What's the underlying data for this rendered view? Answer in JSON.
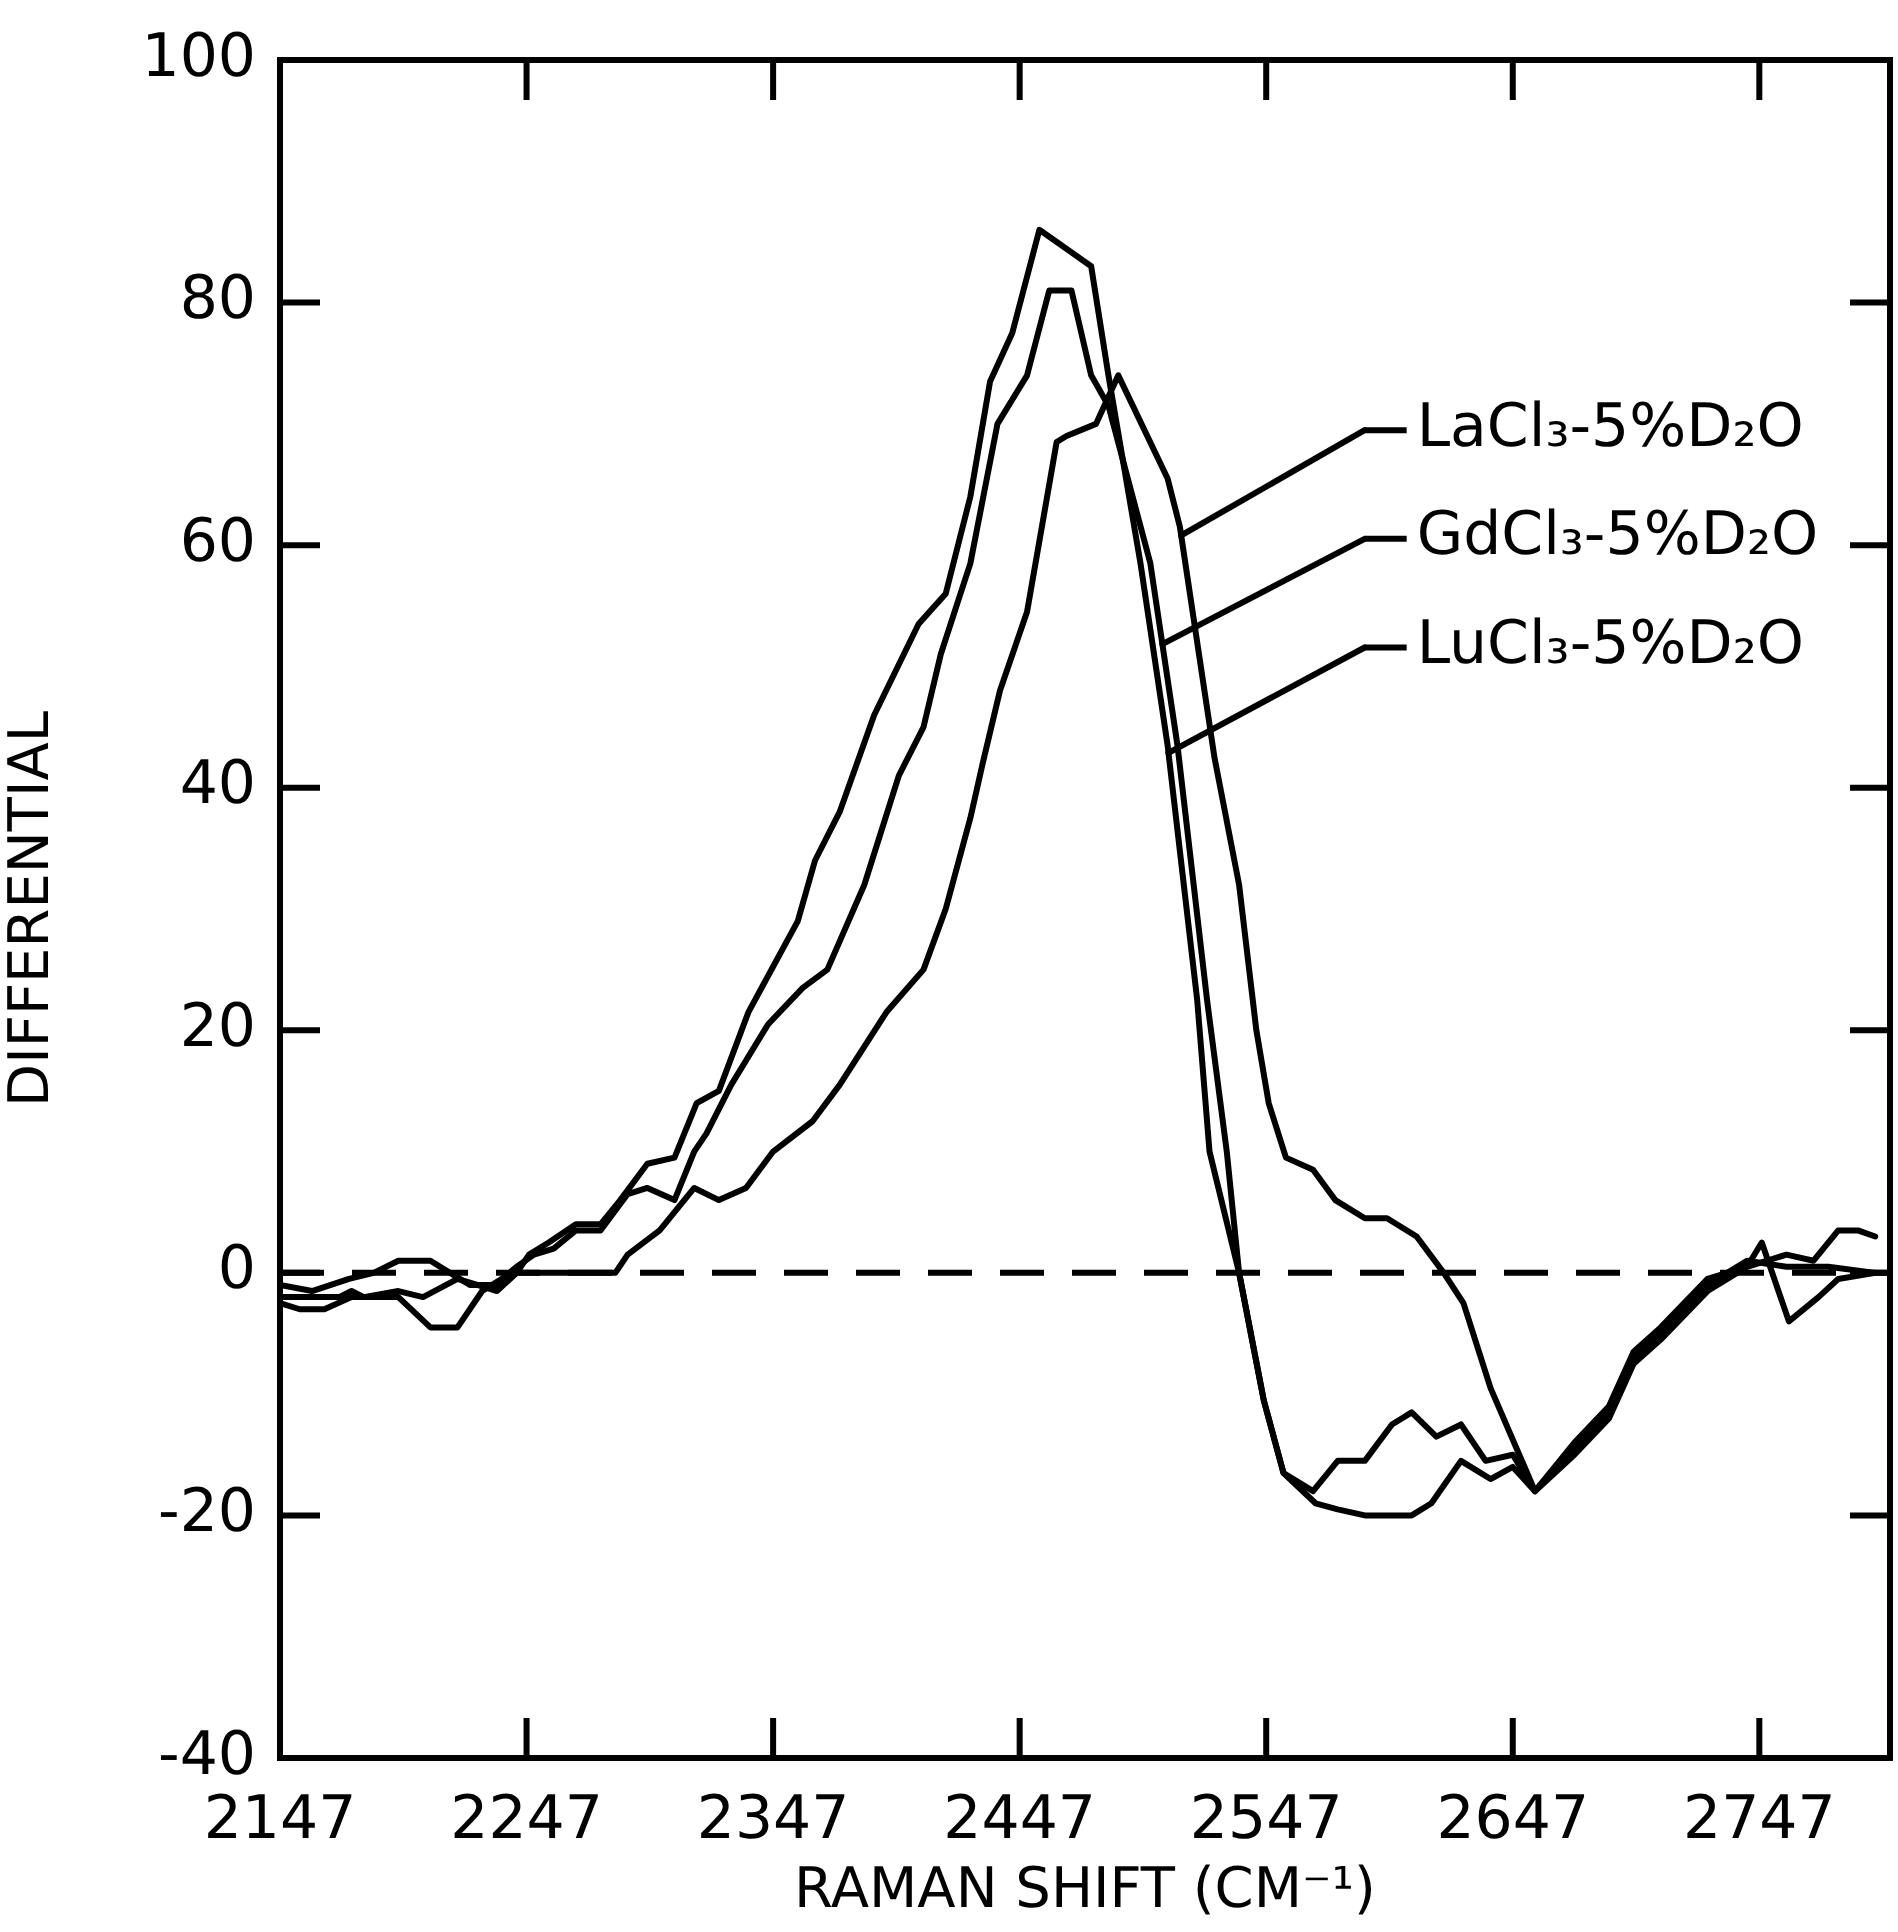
{
  "chart_data": {
    "type": "line",
    "xlabel": "RAMAN SHIFT (CM⁻¹)",
    "ylabel": "DIFFERENTIAL",
    "xlim": [
      2147,
      2800
    ],
    "xticks": [
      2147,
      2247,
      2347,
      2447,
      2547,
      2647,
      2747
    ],
    "ylim": [
      -40,
      100
    ],
    "yticks": [
      -40,
      -20,
      0,
      20,
      40,
      60,
      80,
      100
    ],
    "marker": "none",
    "line_style": "solid",
    "legend": "top right",
    "ref_lines": [
      {
        "axis": "y",
        "value": 0,
        "line_style": "dashed",
        "color": "#000000"
      }
    ],
    "series": [
      {
        "name": "LaCl₃-5%D₂O",
        "color": "#000000",
        "x": [
          2147,
          2160,
          2175,
          2185,
          2195,
          2208,
          2224,
          2235,
          2243,
          2283,
          2288,
          2301,
          2315,
          2325,
          2336,
          2347,
          2363,
          2374,
          2393,
          2408,
          2417,
          2427,
          2432,
          2439,
          2450,
          2462,
          2466,
          2478,
          2487,
          2507,
          2512,
          2526,
          2536,
          2543,
          2548,
          2555,
          2566,
          2575,
          2587,
          2596,
          2608,
          2619,
          2627,
          2638,
          2656,
          2672,
          2686,
          2696,
          2707,
          2726,
          2734,
          2742,
          2758,
          2775,
          2794
        ],
        "values": [
          -1,
          -1.5,
          -0.5,
          0,
          1,
          1,
          -1,
          -1,
          0,
          0,
          1.5,
          3.5,
          7,
          6,
          7,
          10,
          12.5,
          15.5,
          21.5,
          25,
          30,
          37.5,
          42,
          48,
          54.5,
          68.5,
          69,
          70,
          74,
          65.5,
          61.5,
          42.5,
          32,
          20,
          14,
          9.5,
          8.5,
          6,
          4.5,
          4.5,
          3,
          0,
          -2.5,
          -9.5,
          -18,
          -14,
          -11,
          -6.5,
          -4.5,
          -0.5,
          0,
          1,
          0.5,
          0.5,
          0
        ]
      },
      {
        "name": "GdCl₃-5%D₂O",
        "color": "#000000",
        "x": [
          2147,
          2155,
          2165,
          2176,
          2184,
          2195,
          2208,
          2219,
          2229,
          2237,
          2243,
          2250,
          2258,
          2267,
          2277,
          2288,
          2296,
          2307,
          2315,
          2320,
          2330,
          2345,
          2359,
          2369,
          2384,
          2398,
          2408,
          2415,
          2427,
          2438,
          2450,
          2459,
          2468,
          2476,
          2483,
          2500,
          2511,
          2523,
          2531,
          2536,
          2546,
          2554,
          2567,
          2576,
          2587,
          2606,
          2614,
          2626,
          2638,
          2647,
          2656,
          2672,
          2686,
          2696,
          2707,
          2726,
          2734,
          2742,
          2758,
          2769,
          2779,
          2787,
          2794
        ],
        "values": [
          -2.5,
          -3,
          -3,
          -2,
          -2,
          -2,
          -4.5,
          -4.5,
          -1.5,
          -0.5,
          0.5,
          1.5,
          2,
          3.5,
          3.5,
          6.5,
          7,
          6,
          10,
          11.5,
          15.5,
          20.5,
          23.5,
          25,
          32,
          41,
          45,
          51,
          58.5,
          70,
          74,
          81,
          81,
          74,
          71.5,
          58.5,
          43.5,
          22.5,
          10,
          0,
          -10.5,
          -16.5,
          -19,
          -19.5,
          -20,
          -20,
          -19,
          -15.5,
          -17,
          -16,
          -18,
          -15,
          -12,
          -7.5,
          -5.5,
          -1.5,
          -0.5,
          0.5,
          1.5,
          1,
          3.5,
          3.5,
          3
        ]
      },
      {
        "name": "LuCl₃-5%D₂O",
        "color": "#000000",
        "x": [
          2147,
          2160,
          2171,
          2176,
          2181,
          2195,
          2205,
          2219,
          2227,
          2235,
          2243,
          2248,
          2256,
          2267,
          2277,
          2285,
          2296,
          2307,
          2316,
          2325,
          2337,
          2357,
          2364,
          2374,
          2388,
          2406,
          2417,
          2427,
          2435,
          2444,
          2455,
          2476,
          2483,
          2496,
          2507,
          2519,
          2524,
          2536,
          2546,
          2554,
          2566,
          2576,
          2587,
          2598,
          2606,
          2616,
          2626,
          2636,
          2647,
          2656,
          2672,
          2686,
          2696,
          2707,
          2726,
          2734,
          2742,
          2748,
          2759,
          2771,
          2779,
          2794
        ],
        "values": [
          -2,
          -2,
          -2,
          -1.5,
          -2,
          -1.5,
          -2,
          -0.5,
          -1,
          -1.5,
          0,
          1.5,
          2.5,
          4,
          4,
          6,
          9,
          9.5,
          14,
          15,
          21.5,
          29,
          34,
          38,
          46,
          53.5,
          56,
          64,
          73.5,
          77.5,
          86,
          83,
          74,
          58.5,
          43.5,
          22.5,
          10,
          0,
          -10.5,
          -16.5,
          -18,
          -15.5,
          -15.5,
          -12.5,
          -11.5,
          -13.5,
          -12.5,
          -15.5,
          -15,
          -18,
          -14.5,
          -11.5,
          -7,
          -5,
          -1,
          0,
          0.5,
          2.5,
          -4,
          -2,
          -0.5,
          0
        ]
      }
    ]
  }
}
